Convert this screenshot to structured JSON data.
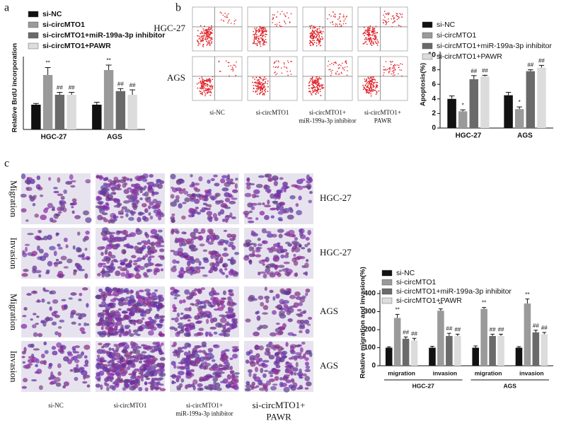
{
  "panel_labels": [
    "a",
    "b",
    "c"
  ],
  "flow_panel": {
    "rows": [
      "HGC-27",
      "AGS"
    ],
    "columns": [
      "si-NC",
      "si-circMTO1",
      "si-circMTO1+ miR-199a-3p inhibitor",
      "si-circMTO1+ PAWR"
    ]
  },
  "micro_panel": {
    "row_labels": [
      "Migration",
      "Invasion",
      "Migration",
      "Invasion"
    ],
    "cell_lines": [
      "HGC-27",
      "HGC-27",
      "AGS",
      "AGS"
    ],
    "columns": [
      "si-NC",
      "si-circMTO1",
      "si-circMTO1+ miR-199a-3p inhibitor",
      "si-circMTO1+ PAWR"
    ]
  },
  "chart_data": [
    {
      "type": "bar",
      "y_label": "Relative BrdU incorporation",
      "categories": [
        "HGC-27",
        "AGS"
      ],
      "ylim": [
        0,
        2.8
      ],
      "series": [
        {
          "name": "si-NC",
          "color": "#111111",
          "values": [
            1.0,
            1.0
          ],
          "errors": [
            0.05,
            0.1
          ],
          "annotations": [
            null,
            null
          ]
        },
        {
          "name": "si-circMTO1",
          "color": "#9a9a9a",
          "values": [
            2.2,
            2.4
          ],
          "errors": [
            0.3,
            0.2
          ],
          "annotations": [
            "**",
            "**"
          ]
        },
        {
          "name": "si-circMTO1+miR-199a-3p inhibitor",
          "color": "#6a6a6a",
          "values": [
            1.4,
            1.55
          ],
          "errors": [
            0.1,
            0.1
          ],
          "annotations": [
            "##",
            "##"
          ]
        },
        {
          "name": "si-circMTO1+PAWR",
          "color": "#dcdcdc",
          "values": [
            1.4,
            1.4
          ],
          "errors": [
            0.1,
            0.2
          ],
          "annotations": [
            "##",
            "##"
          ]
        }
      ]
    },
    {
      "type": "bar",
      "y_label": "Apoptosis(%)",
      "categories": [
        "HGC-27",
        "AGS"
      ],
      "ylim": [
        0,
        10
      ],
      "yticks": [
        0,
        2,
        4,
        6,
        8,
        10
      ],
      "series": [
        {
          "name": "si-NC",
          "color": "#111111",
          "values": [
            4.0,
            4.5
          ],
          "errors": [
            0.4,
            0.4
          ],
          "annotations": [
            null,
            null
          ]
        },
        {
          "name": "si-circMTO1",
          "color": "#9a9a9a",
          "values": [
            2.3,
            2.6
          ],
          "errors": [
            0.2,
            0.3
          ],
          "annotations": [
            "*",
            "*"
          ]
        },
        {
          "name": "si-circMTO1+miR-199a-3p inhibitor",
          "color": "#6a6a6a",
          "values": [
            6.7,
            7.8
          ],
          "errors": [
            0.5,
            0.2
          ],
          "annotations": [
            "##",
            "##"
          ]
        },
        {
          "name": "si-circMTO1+PAWR",
          "color": "#dcdcdc",
          "values": [
            7.1,
            8.3
          ],
          "errors": [
            0.15,
            0.3
          ],
          "annotations": [
            "##",
            "##"
          ]
        }
      ]
    },
    {
      "type": "bar",
      "y_label": "Relative migration and invasion(%)",
      "categories": [
        "migration",
        "invasion",
        "migration",
        "invasion"
      ],
      "groups": [
        "HGC-27",
        "AGS"
      ],
      "ylim": [
        0,
        400
      ],
      "yticks": [
        0,
        100,
        200,
        300,
        400
      ],
      "series": [
        {
          "name": "si-NC",
          "color": "#111111",
          "values": [
            100,
            100,
            100,
            100
          ],
          "errors": [
            5,
            8,
            10,
            6
          ],
          "annotations": [
            null,
            null,
            null,
            null
          ]
        },
        {
          "name": "si-circMTO1",
          "color": "#9a9a9a",
          "values": [
            265,
            305,
            315,
            345
          ],
          "errors": [
            20,
            10,
            8,
            25
          ],
          "annotations": [
            "**",
            "**",
            "**",
            "**"
          ]
        },
        {
          "name": "si-circMTO1+miR-199a-3p inhibitor",
          "color": "#6a6a6a",
          "values": [
            150,
            165,
            165,
            185
          ],
          "errors": [
            10,
            15,
            10,
            12
          ],
          "annotations": [
            "##",
            "##",
            "##",
            "##"
          ]
        },
        {
          "name": "si-circMTO1+PAWR",
          "color": "#dcdcdc",
          "values": [
            140,
            165,
            165,
            175
          ],
          "errors": [
            12,
            10,
            10,
            10
          ],
          "annotations": [
            "##",
            "##",
            "##",
            "##"
          ]
        }
      ]
    }
  ]
}
